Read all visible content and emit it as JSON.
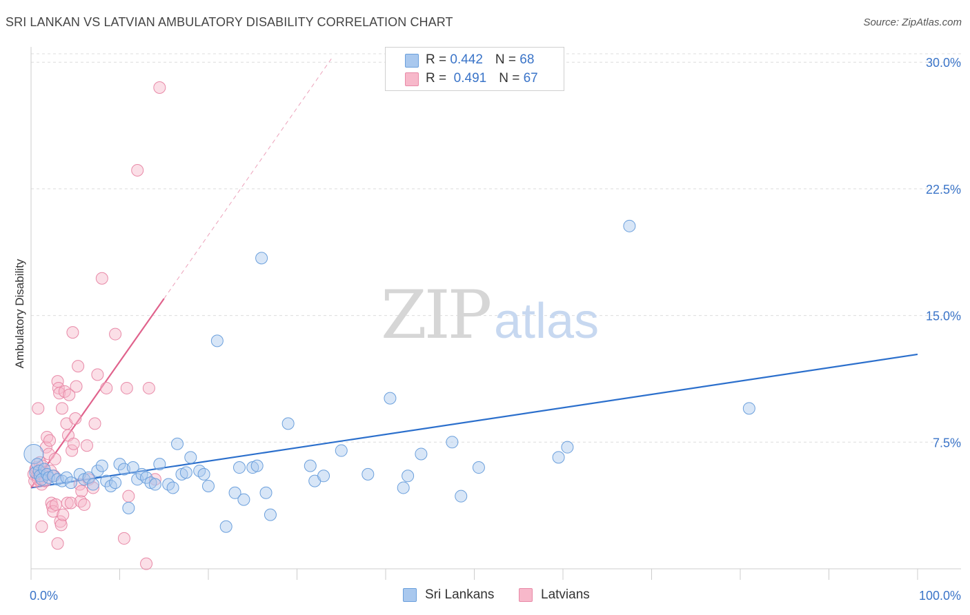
{
  "title": "SRI LANKAN VS LATVIAN AMBULATORY DISABILITY CORRELATION CHART",
  "source": "Source: ZipAtlas.com",
  "watermark": {
    "zip": "ZIP",
    "atlas": "atlas"
  },
  "legend": {
    "rows": [
      {
        "r_label": "R = ",
        "r_value": "0.442",
        "n_label": "N = ",
        "n_value": "68"
      },
      {
        "r_label": "R = ",
        "r_value": " 0.491",
        "n_label": "N = ",
        "n_value": "67"
      }
    ]
  },
  "bottom_legend": {
    "sri_lankans": "Sri Lankans",
    "latvians": "Latvians"
  },
  "colors": {
    "blue_fill": "#a9c8ee",
    "blue_stroke": "#6a9fdc",
    "blue_line": "#2b6fcc",
    "pink_fill": "#f7b8ca",
    "pink_stroke": "#e889a7",
    "pink_line": "#e0628c",
    "axis_label": "#3a74c8"
  },
  "chart_data": {
    "type": "scatter",
    "title": "SRI LANKAN VS LATVIAN AMBULATORY DISABILITY CORRELATION CHART",
    "xlabel": "",
    "ylabel": "Ambulatory Disability",
    "xlim": [
      0,
      100
    ],
    "ylim": [
      0,
      30.5
    ],
    "x_tick_labels": [
      "0.0%",
      "100.0%"
    ],
    "y_ticks": [
      7.5,
      15.0,
      22.5,
      30.0
    ],
    "y_tick_labels": [
      "7.5%",
      "15.0%",
      "22.5%",
      "30.0%"
    ],
    "series": [
      {
        "name": "Sri Lankans",
        "R": 0.442,
        "N": 68,
        "trend": {
          "x": [
            0,
            100
          ],
          "y": [
            4.8,
            12.7
          ]
        },
        "points": [
          [
            0.3,
            6.8
          ],
          [
            0.5,
            5.7
          ],
          [
            0.7,
            6.2
          ],
          [
            0.9,
            5.8
          ],
          [
            1.0,
            5.5
          ],
          [
            1.2,
            5.3
          ],
          [
            1.5,
            5.9
          ],
          [
            1.8,
            5.6
          ],
          [
            2.0,
            5.4
          ],
          [
            2.5,
            5.5
          ],
          [
            3.0,
            5.3
          ],
          [
            3.5,
            5.2
          ],
          [
            4.0,
            5.4
          ],
          [
            4.5,
            5.1
          ],
          [
            5.5,
            5.6
          ],
          [
            6.0,
            5.3
          ],
          [
            6.5,
            5.4
          ],
          [
            7.0,
            5.0
          ],
          [
            7.5,
            5.8
          ],
          [
            8.0,
            6.1
          ],
          [
            8.5,
            5.2
          ],
          [
            9.0,
            4.9
          ],
          [
            9.5,
            5.1
          ],
          [
            10.0,
            6.2
          ],
          [
            10.5,
            5.9
          ],
          [
            11.0,
            3.6
          ],
          [
            11.5,
            6.0
          ],
          [
            12.0,
            5.3
          ],
          [
            12.5,
            5.6
          ],
          [
            13.0,
            5.4
          ],
          [
            13.5,
            5.1
          ],
          [
            14.0,
            5.0
          ],
          [
            14.5,
            6.2
          ],
          [
            15.5,
            5.0
          ],
          [
            16.0,
            4.8
          ],
          [
            16.5,
            7.4
          ],
          [
            17.0,
            5.6
          ],
          [
            17.5,
            5.7
          ],
          [
            18.0,
            6.6
          ],
          [
            19.0,
            5.8
          ],
          [
            19.5,
            5.6
          ],
          [
            20.0,
            4.9
          ],
          [
            21.0,
            13.5
          ],
          [
            22.0,
            2.5
          ],
          [
            23.0,
            4.5
          ],
          [
            23.5,
            6.0
          ],
          [
            24.0,
            4.1
          ],
          [
            25.0,
            6.0
          ],
          [
            25.5,
            6.1
          ],
          [
            26.0,
            18.4
          ],
          [
            26.5,
            4.5
          ],
          [
            27.0,
            3.2
          ],
          [
            29.0,
            8.6
          ],
          [
            31.5,
            6.1
          ],
          [
            32.0,
            5.2
          ],
          [
            33.0,
            5.5
          ],
          [
            35.0,
            7.0
          ],
          [
            38.0,
            5.6
          ],
          [
            40.5,
            10.1
          ],
          [
            42.5,
            5.5
          ],
          [
            42.0,
            4.8
          ],
          [
            44.0,
            6.8
          ],
          [
            47.5,
            7.5
          ],
          [
            48.5,
            4.3
          ],
          [
            50.5,
            6.0
          ],
          [
            59.5,
            6.6
          ],
          [
            60.5,
            7.2
          ],
          [
            67.5,
            20.3
          ],
          [
            81.0,
            9.5
          ]
        ]
      },
      {
        "name": "Latvians",
        "R": 0.491,
        "N": 67,
        "trend": {
          "x": [
            0,
            15
          ],
          "y": [
            4.8,
            16.0
          ]
        },
        "trend_dashed": {
          "x": [
            15,
            34
          ],
          "y": [
            16.0,
            30.3
          ]
        },
        "points": [
          [
            0.3,
            5.6
          ],
          [
            0.4,
            5.2
          ],
          [
            0.5,
            5.9
          ],
          [
            0.6,
            6.0
          ],
          [
            0.7,
            5.5
          ],
          [
            0.8,
            5.3
          ],
          [
            0.9,
            5.8
          ],
          [
            1.0,
            6.3
          ],
          [
            1.1,
            5.4
          ],
          [
            1.2,
            5.0
          ],
          [
            1.3,
            6.1
          ],
          [
            1.4,
            5.7
          ],
          [
            1.5,
            5.5
          ],
          [
            1.6,
            5.2
          ],
          [
            1.7,
            7.2
          ],
          [
            1.8,
            7.8
          ],
          [
            2.0,
            6.8
          ],
          [
            2.1,
            7.6
          ],
          [
            2.2,
            5.8
          ],
          [
            2.3,
            3.9
          ],
          [
            2.4,
            3.7
          ],
          [
            2.5,
            3.4
          ],
          [
            2.6,
            5.5
          ],
          [
            2.7,
            6.5
          ],
          [
            2.8,
            3.8
          ],
          [
            3.0,
            11.1
          ],
          [
            3.1,
            10.7
          ],
          [
            3.2,
            10.4
          ],
          [
            3.3,
            2.8
          ],
          [
            3.4,
            2.6
          ],
          [
            3.5,
            9.5
          ],
          [
            3.6,
            3.2
          ],
          [
            3.8,
            10.5
          ],
          [
            4.0,
            8.6
          ],
          [
            4.1,
            3.9
          ],
          [
            4.2,
            7.9
          ],
          [
            4.3,
            10.3
          ],
          [
            4.5,
            3.9
          ],
          [
            4.6,
            7.0
          ],
          [
            4.7,
            14.0
          ],
          [
            4.8,
            7.4
          ],
          [
            5.0,
            8.9
          ],
          [
            5.1,
            10.8
          ],
          [
            5.3,
            12.0
          ],
          [
            5.5,
            5.0
          ],
          [
            5.6,
            4.0
          ],
          [
            5.7,
            4.6
          ],
          [
            6.0,
            3.8
          ],
          [
            6.3,
            7.3
          ],
          [
            6.5,
            5.3
          ],
          [
            7.0,
            4.8
          ],
          [
            7.2,
            8.6
          ],
          [
            7.5,
            11.5
          ],
          [
            8.0,
            17.2
          ],
          [
            8.5,
            10.7
          ],
          [
            9.5,
            13.9
          ],
          [
            10.5,
            1.8
          ],
          [
            10.8,
            10.7
          ],
          [
            11.0,
            4.3
          ],
          [
            12.0,
            23.6
          ],
          [
            13.0,
            0.3
          ],
          [
            13.3,
            10.7
          ],
          [
            14.0,
            5.3
          ],
          [
            14.5,
            28.5
          ],
          [
            0.8,
            9.5
          ],
          [
            3.0,
            1.5
          ],
          [
            1.2,
            2.5
          ]
        ]
      }
    ]
  }
}
